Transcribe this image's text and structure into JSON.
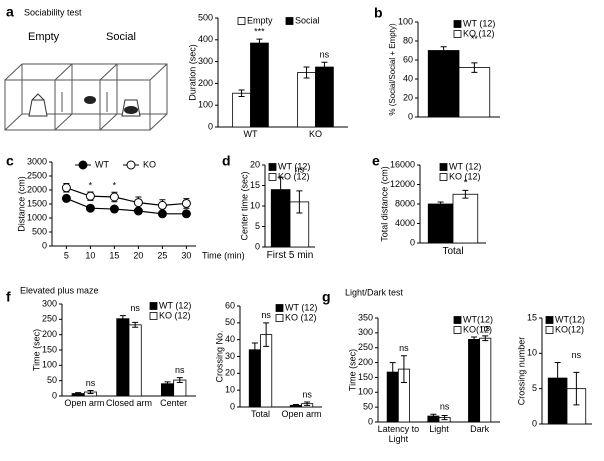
{
  "chart_data": [
    {
      "panel": "a",
      "type": "bar",
      "scene_title": "Sociability test",
      "scene_labels": [
        "Empty",
        "Social"
      ],
      "categories": [
        "WT",
        "KO"
      ],
      "series": [
        {
          "name": "Empty",
          "color": "#ffffff",
          "values": [
            155,
            250
          ],
          "errors": [
            15,
            25
          ]
        },
        {
          "name": "Social",
          "color": "#000000",
          "values": [
            385,
            275
          ],
          "errors": [
            18,
            22
          ]
        }
      ],
      "significance": [
        "***",
        "ns"
      ],
      "ylabel": "Duration (sec)",
      "ylim": [
        0,
        500
      ],
      "yticks": [
        0,
        100,
        200,
        300,
        400,
        500
      ],
      "legend": "top"
    },
    {
      "panel": "b",
      "type": "bar",
      "categories": [
        null
      ],
      "series": [
        {
          "name": "WT (12)",
          "color": "#000000",
          "values": [
            70
          ],
          "errors": [
            4
          ]
        },
        {
          "name": "KO (12)",
          "color": "#ffffff",
          "values": [
            52
          ],
          "errors": [
            5
          ]
        }
      ],
      "significance": [
        "**"
      ],
      "ylabel": "% (Social/Social + Empty)",
      "ylim": [
        0,
        100
      ],
      "yticks": [
        0,
        20,
        40,
        60,
        80,
        100
      ],
      "legend": "top-right"
    },
    {
      "panel": "c",
      "type": "line",
      "x": [
        5,
        10,
        15,
        20,
        25,
        30
      ],
      "series": [
        {
          "name": "WT",
          "color": "#000000",
          "values": [
            1700,
            1350,
            1320,
            1250,
            1150,
            1150
          ],
          "errors": [
            100,
            80,
            80,
            100,
            100,
            90
          ]
        },
        {
          "name": "KO",
          "color": "#ffffff",
          "values": [
            2080,
            1780,
            1750,
            1550,
            1450,
            1520
          ],
          "errors": [
            150,
            150,
            170,
            200,
            200,
            170
          ]
        }
      ],
      "significance": [
        null,
        "*",
        "*",
        null,
        null,
        null
      ],
      "xlabel": "Time (min)",
      "ylabel": "Distance (cm)",
      "xlim": [
        2,
        32
      ],
      "xticks": [
        5,
        10,
        15,
        20,
        25,
        30
      ],
      "ylim": [
        0,
        3000
      ],
      "yticks": [
        0,
        500,
        1000,
        1500,
        2000,
        2500,
        3000
      ],
      "legend": "top"
    },
    {
      "panel": "d",
      "type": "bar",
      "categories": [
        "First 5 min"
      ],
      "series": [
        {
          "name": "WT (12)",
          "color": "#000000",
          "values": [
            14
          ],
          "errors": [
            3
          ]
        },
        {
          "name": "KO (12)",
          "color": "#ffffff",
          "values": [
            11
          ],
          "errors": [
            2.7
          ]
        }
      ],
      "significance": [
        "ns"
      ],
      "ylabel": "Center time (sec)",
      "ylim": [
        0,
        20
      ],
      "yticks": [
        0,
        5,
        10,
        15,
        20
      ],
      "legend": "top-right"
    },
    {
      "panel": "e",
      "type": "bar",
      "categories": [
        "Total"
      ],
      "series": [
        {
          "name": "WT (12)",
          "color": "#000000",
          "values": [
            8000
          ],
          "errors": [
            400
          ]
        },
        {
          "name": "KO (12)",
          "color": "#ffffff",
          "values": [
            10000
          ],
          "errors": [
            800
          ]
        }
      ],
      "significance": [
        "*"
      ],
      "ylabel": "Total distance (cm)",
      "ylim": [
        0,
        16000
      ],
      "yticks": [
        0,
        4000,
        8000,
        12000,
        16000
      ],
      "legend": "top-right"
    },
    {
      "panel": "f",
      "type": "bar",
      "title": "Elevated plus maze",
      "categories": [
        "Open arm",
        "Closed arm",
        "Center"
      ],
      "series": [
        {
          "name": "WT (12)",
          "color": "#000000",
          "values": [
            8,
            252,
            40
          ],
          "errors": [
            3,
            10,
            6
          ]
        },
        {
          "name": "KO (12)",
          "color": "#ffffff",
          "values": [
            13,
            232,
            52
          ],
          "errors": [
            5,
            8,
            8
          ]
        }
      ],
      "significance": [
        "ns",
        "ns",
        "ns"
      ],
      "ylabel": "Time (sec)",
      "ylim": [
        0,
        300
      ],
      "yticks": [
        0,
        50,
        100,
        150,
        200,
        250,
        300
      ],
      "legend": "top-right"
    },
    {
      "type": "bar",
      "categories": [
        "Total",
        "Open arm"
      ],
      "series": [
        {
          "name": "WT (12)",
          "color": "#000000",
          "values": [
            34,
            1
          ],
          "errors": [
            4,
            0.5
          ]
        },
        {
          "name": "KO (12)",
          "color": "#ffffff",
          "values": [
            43,
            2
          ],
          "errors": [
            7,
            1
          ]
        }
      ],
      "significance": [
        "ns",
        "ns"
      ],
      "ylabel": "Crossing No.",
      "ylim": [
        0,
        60
      ],
      "yticks": [
        0,
        10,
        20,
        30,
        40,
        50,
        60
      ],
      "legend": "top-right"
    },
    {
      "panel": "g",
      "type": "bar",
      "title": "Light/Dark test",
      "categories": [
        "Latency to Light",
        "Light",
        "Dark"
      ],
      "series": [
        {
          "name": "WT(12)",
          "color": "#000000",
          "values": [
            168,
            20,
            278
          ],
          "errors": [
            32,
            6,
            8
          ]
        },
        {
          "name": "KO(12)",
          "color": "#ffffff",
          "values": [
            178,
            15,
            282
          ],
          "errors": [
            45,
            7,
            8
          ]
        }
      ],
      "significance": [
        "ns",
        "ns",
        "ns"
      ],
      "ylabel": "Time (sec)",
      "ylim": [
        0,
        350
      ],
      "yticks": [
        0,
        50,
        100,
        150,
        200,
        250,
        300,
        350
      ],
      "legend": "top-right"
    },
    {
      "type": "bar",
      "categories": [
        null
      ],
      "series": [
        {
          "name": "WT(12)",
          "color": "#000000",
          "values": [
            6.5
          ],
          "errors": [
            2.2
          ]
        },
        {
          "name": "KO(12)",
          "color": "#ffffff",
          "values": [
            5
          ],
          "errors": [
            2.3
          ]
        }
      ],
      "significance": [
        "ns"
      ],
      "ylabel": "Crossing number",
      "ylim": [
        0,
        15
      ],
      "yticks": [
        0,
        5,
        10,
        15
      ],
      "legend": "top-right"
    }
  ]
}
